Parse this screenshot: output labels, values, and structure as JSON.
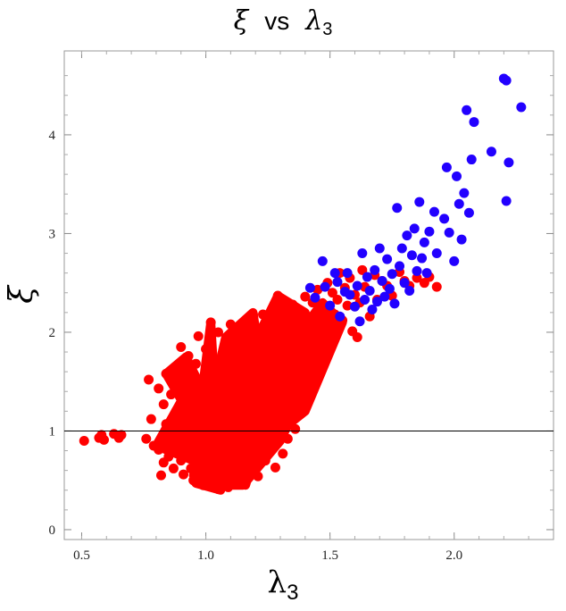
{
  "chart_data": {
    "type": "scatter",
    "title": {
      "left_symbol": "ξ",
      "middle": "vs",
      "right_symbol": "λ",
      "right_subscript": "3"
    },
    "xlabel": {
      "symbol": "λ",
      "subscript": "3"
    },
    "ylabel": "ξ",
    "xlim": [
      0.43,
      2.4
    ],
    "ylim": [
      -0.1,
      4.85
    ],
    "x_ticks": [
      0.5,
      1.0,
      1.5,
      2.0
    ],
    "x_tick_labels": [
      "0.5",
      "1.0",
      "1.5",
      "2.0"
    ],
    "y_ticks": [
      0,
      1,
      2,
      3,
      4
    ],
    "y_tick_labels": [
      "0",
      "1",
      "2",
      "3",
      "4"
    ],
    "reference_line": {
      "y": 1,
      "color": "#000000"
    },
    "grid": false,
    "series": [
      {
        "color": "#ff0000",
        "points": [
          [
            0.51,
            0.9
          ],
          [
            0.57,
            0.93
          ],
          [
            0.58,
            0.96
          ],
          [
            0.59,
            0.91
          ],
          [
            0.63,
            0.97
          ],
          [
            0.65,
            0.93
          ],
          [
            0.66,
            0.96
          ],
          [
            0.76,
            0.92
          ],
          [
            0.77,
            1.52
          ],
          [
            0.78,
            1.12
          ],
          [
            0.79,
            0.85
          ],
          [
            0.81,
            1.43
          ],
          [
            0.81,
            0.81
          ],
          [
            0.82,
            0.55
          ],
          [
            0.83,
            1.27
          ],
          [
            0.83,
            0.68
          ],
          [
            0.84,
            1.58
          ],
          [
            0.84,
            1.07
          ],
          [
            0.85,
            0.74
          ],
          [
            0.86,
            0.97
          ],
          [
            0.86,
            1.37
          ],
          [
            0.87,
            0.62
          ],
          [
            0.88,
            1.2
          ],
          [
            0.89,
            0.9
          ],
          [
            0.89,
            1.03
          ],
          [
            0.9,
            1.85
          ],
          [
            0.9,
            0.7
          ],
          [
            0.91,
            1.32
          ],
          [
            0.91,
            0.56
          ],
          [
            0.92,
            1.49
          ],
          [
            0.92,
            1.1
          ],
          [
            0.93,
            0.8
          ],
          [
            0.93,
            1.76
          ],
          [
            0.94,
            0.62
          ],
          [
            0.94,
            1.41
          ],
          [
            0.95,
            1.01
          ],
          [
            0.95,
            0.5
          ],
          [
            0.96,
            1.68
          ],
          [
            0.96,
            1.23
          ],
          [
            0.97,
            0.87
          ],
          [
            0.97,
            1.96
          ],
          [
            0.98,
            0.58
          ],
          [
            0.98,
            1.36
          ],
          [
            0.99,
            1.05
          ],
          [
            0.99,
            0.45
          ],
          [
            1.0,
            1.83
          ],
          [
            1.0,
            1.29
          ],
          [
            1.0,
            0.71
          ],
          [
            1.01,
            1.58
          ],
          [
            1.01,
            1.14
          ],
          [
            1.02,
            0.94
          ],
          [
            1.02,
            2.1
          ],
          [
            1.02,
            0.48
          ],
          [
            1.03,
            1.48
          ],
          [
            1.03,
            1.72
          ],
          [
            1.04,
            0.82
          ],
          [
            1.04,
            1.21
          ],
          [
            1.05,
            2.0
          ],
          [
            1.05,
            0.41
          ],
          [
            1.05,
            0.63
          ],
          [
            1.06,
            1.62
          ],
          [
            1.06,
            1.36
          ],
          [
            1.07,
            1.06
          ],
          [
            1.07,
            0.53
          ],
          [
            1.08,
            1.87
          ],
          [
            1.08,
            0.88
          ],
          [
            1.09,
            1.27
          ],
          [
            1.09,
            0.43
          ],
          [
            1.1,
            2.08
          ],
          [
            1.1,
            1.54
          ],
          [
            1.1,
            0.71
          ],
          [
            1.11,
            1.12
          ],
          [
            1.11,
            0.99
          ],
          [
            1.12,
            0.49
          ],
          [
            1.12,
            1.69
          ],
          [
            1.13,
            1.39
          ],
          [
            1.13,
            0.6
          ],
          [
            1.14,
            0.92
          ],
          [
            1.14,
            1.93
          ],
          [
            1.15,
            1.22
          ],
          [
            1.15,
            0.74
          ],
          [
            1.16,
            1.58
          ],
          [
            1.16,
            0.47
          ],
          [
            1.17,
            1.05
          ],
          [
            1.17,
            2.03
          ],
          [
            1.18,
            1.3
          ],
          [
            1.18,
            0.64
          ],
          [
            1.19,
            2.18
          ],
          [
            1.19,
            1.74
          ],
          [
            1.2,
            0.86
          ],
          [
            1.2,
            1.46
          ],
          [
            1.21,
            0.54
          ],
          [
            1.21,
            1.16
          ],
          [
            1.22,
            1.9
          ],
          [
            1.22,
            0.99
          ],
          [
            1.23,
            1.34
          ],
          [
            1.23,
            2.18
          ],
          [
            1.24,
            0.7
          ],
          [
            1.24,
            1.62
          ],
          [
            1.25,
            1.08
          ],
          [
            1.25,
            2.08
          ],
          [
            1.26,
            1.41
          ],
          [
            1.26,
            0.81
          ],
          [
            1.27,
            1.81
          ],
          [
            1.27,
            1.21
          ],
          [
            1.28,
            0.63
          ],
          [
            1.28,
            1.55
          ],
          [
            1.29,
            2.37
          ],
          [
            1.29,
            0.98
          ],
          [
            1.3,
            1.94
          ],
          [
            1.3,
            1.33
          ],
          [
            1.31,
            0.77
          ],
          [
            1.31,
            1.68
          ],
          [
            1.32,
            1.14
          ],
          [
            1.32,
            2.12
          ],
          [
            1.33,
            1.48
          ],
          [
            1.33,
            0.92
          ],
          [
            1.34,
            1.86
          ],
          [
            1.34,
            1.26
          ],
          [
            1.35,
            2.28
          ],
          [
            1.35,
            1.63
          ],
          [
            1.36,
            1.02
          ],
          [
            1.36,
            2.01
          ],
          [
            1.37,
            1.42
          ],
          [
            1.37,
            1.77
          ],
          [
            1.38,
            1.19
          ],
          [
            1.38,
            2.16
          ],
          [
            1.39,
            1.56
          ],
          [
            1.39,
            1.93
          ],
          [
            1.4,
            1.33
          ],
          [
            1.4,
            2.36
          ],
          [
            1.41,
            1.71
          ],
          [
            1.41,
            2.07
          ],
          [
            1.42,
            1.48
          ],
          [
            1.43,
            2.3
          ],
          [
            1.43,
            1.85
          ],
          [
            1.44,
            1.63
          ],
          [
            1.44,
            2.16
          ],
          [
            1.45,
            2.43
          ],
          [
            1.45,
            1.98
          ],
          [
            1.46,
            1.77
          ],
          [
            1.47,
            2.29
          ],
          [
            1.47,
            2.11
          ],
          [
            1.48,
            1.92
          ],
          [
            1.49,
            2.5
          ],
          [
            1.49,
            2.24
          ],
          [
            1.5,
            2.05
          ],
          [
            1.51,
            2.4
          ],
          [
            1.52,
            2.18
          ],
          [
            1.53,
            2.33
          ],
          [
            1.54,
            2.6
          ],
          [
            1.55,
            2.12
          ],
          [
            1.56,
            2.45
          ],
          [
            1.57,
            2.27
          ],
          [
            1.58,
            2.55
          ],
          [
            1.59,
            2.01
          ],
          [
            1.6,
            2.38
          ],
          [
            1.61,
            1.95
          ],
          [
            1.62,
            2.3
          ],
          [
            1.63,
            2.63
          ],
          [
            1.64,
            2.46
          ],
          [
            1.66,
            2.16
          ],
          [
            1.68,
            2.58
          ],
          [
            1.69,
            2.33
          ],
          [
            1.71,
            2.52
          ],
          [
            1.73,
            2.47
          ],
          [
            1.75,
            2.37
          ],
          [
            1.78,
            2.61
          ],
          [
            1.8,
            2.52
          ],
          [
            1.82,
            2.47
          ],
          [
            1.85,
            2.55
          ],
          [
            1.88,
            2.5
          ],
          [
            1.9,
            2.56
          ],
          [
            1.93,
            2.46
          ]
        ]
      },
      {
        "color": "#2200ff",
        "points": [
          [
            1.42,
            2.45
          ],
          [
            1.44,
            2.35
          ],
          [
            1.47,
            2.72
          ],
          [
            1.48,
            2.46
          ],
          [
            1.5,
            2.27
          ],
          [
            1.52,
            2.6
          ],
          [
            1.53,
            2.51
          ],
          [
            1.54,
            2.16
          ],
          [
            1.56,
            2.41
          ],
          [
            1.57,
            2.6
          ],
          [
            1.58,
            2.38
          ],
          [
            1.6,
            2.26
          ],
          [
            1.61,
            2.47
          ],
          [
            1.62,
            2.11
          ],
          [
            1.63,
            2.8
          ],
          [
            1.64,
            2.33
          ],
          [
            1.65,
            2.56
          ],
          [
            1.66,
            2.42
          ],
          [
            1.67,
            2.23
          ],
          [
            1.68,
            2.63
          ],
          [
            1.69,
            2.31
          ],
          [
            1.7,
            2.85
          ],
          [
            1.71,
            2.52
          ],
          [
            1.72,
            2.36
          ],
          [
            1.73,
            2.74
          ],
          [
            1.74,
            2.44
          ],
          [
            1.75,
            2.59
          ],
          [
            1.76,
            2.29
          ],
          [
            1.77,
            3.26
          ],
          [
            1.78,
            2.67
          ],
          [
            1.79,
            2.85
          ],
          [
            1.8,
            2.5
          ],
          [
            1.81,
            2.98
          ],
          [
            1.82,
            2.42
          ],
          [
            1.83,
            2.78
          ],
          [
            1.84,
            3.05
          ],
          [
            1.85,
            2.62
          ],
          [
            1.86,
            3.32
          ],
          [
            1.87,
            2.75
          ],
          [
            1.88,
            2.91
          ],
          [
            1.89,
            2.6
          ],
          [
            1.9,
            3.02
          ],
          [
            1.92,
            3.22
          ],
          [
            1.93,
            2.8
          ],
          [
            1.96,
            3.15
          ],
          [
            1.97,
            3.67
          ],
          [
            1.98,
            3.01
          ],
          [
            2.0,
            2.72
          ],
          [
            2.01,
            3.58
          ],
          [
            2.02,
            3.3
          ],
          [
            2.03,
            2.94
          ],
          [
            2.04,
            3.41
          ],
          [
            2.05,
            4.25
          ],
          [
            2.06,
            3.21
          ],
          [
            2.07,
            3.75
          ],
          [
            2.08,
            4.13
          ],
          [
            2.15,
            3.83
          ],
          [
            2.2,
            4.57
          ],
          [
            2.21,
            4.55
          ],
          [
            2.21,
            3.33
          ],
          [
            2.22,
            3.72
          ],
          [
            2.27,
            4.28
          ]
        ]
      }
    ]
  }
}
